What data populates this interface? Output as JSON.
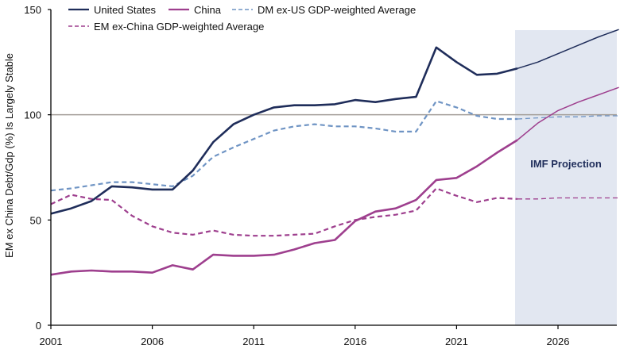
{
  "chart_data": {
    "type": "line",
    "title": "",
    "xlabel": "",
    "ylabel": "EM ex China Debt/Gdp (%) Is Largely Stable",
    "xlim": [
      2001,
      2029
    ],
    "ylim": [
      0,
      150
    ],
    "x_ticks": [
      2001,
      2006,
      2011,
      2016,
      2021,
      2026
    ],
    "y_ticks": [
      0,
      50,
      100,
      150
    ],
    "reference_line": {
      "y": 100,
      "color": "#a39e99"
    },
    "projection_band": {
      "x_start": 2024,
      "x_end": 2029,
      "label": "IMF Projection",
      "color": "#e2e7f1"
    },
    "legend_position": "top",
    "x": [
      2001,
      2002,
      2003,
      2004,
      2005,
      2006,
      2007,
      2008,
      2009,
      2010,
      2011,
      2012,
      2013,
      2014,
      2015,
      2016,
      2017,
      2018,
      2019,
      2020,
      2021,
      2022,
      2023,
      2024,
      2025,
      2026,
      2027,
      2028,
      2029
    ],
    "series": [
      {
        "name": "United States",
        "style": "solid",
        "color": "#1f2d5a",
        "values": [
          53,
          55.5,
          59,
          66,
          65.5,
          64.5,
          64.5,
          73.5,
          87,
          95.5,
          100,
          103.5,
          104.5,
          104.5,
          105,
          107,
          106,
          107.5,
          108.5,
          132,
          125,
          119,
          119.5,
          122,
          125,
          129,
          133,
          137,
          140.5
        ]
      },
      {
        "name": "China",
        "style": "solid",
        "color": "#9e3f8e",
        "values": [
          24,
          25.5,
          26,
          25.5,
          25.5,
          25,
          28.5,
          26.5,
          33.5,
          33,
          33,
          33.5,
          36,
          39,
          40.5,
          49.5,
          54,
          55.5,
          59.5,
          69,
          70,
          75.5,
          82,
          88,
          96,
          102,
          106,
          109.5,
          113
        ]
      },
      {
        "name": "DM ex-US GDP-weighted Average",
        "style": "dashed",
        "color": "#6f94c4",
        "values": [
          64,
          65,
          66.5,
          68,
          68,
          67,
          66,
          71,
          80,
          84.5,
          88.5,
          92.5,
          94.5,
          95.5,
          94.5,
          94.5,
          93.5,
          92,
          92,
          106.5,
          103.5,
          99.5,
          98,
          98,
          98.5,
          99,
          99,
          99.5,
          99.5
        ]
      },
      {
        "name": "EM ex-China GDP-weighted Average",
        "style": "dashed",
        "color": "#9e3f8e",
        "values": [
          57.5,
          62,
          60,
          59.5,
          52,
          47,
          44,
          43,
          45,
          43,
          42.5,
          42.5,
          43,
          43.5,
          47,
          50,
          51.5,
          52.5,
          54.5,
          65,
          61.5,
          58.5,
          60.5,
          60,
          60,
          60.5,
          60.5,
          60.5,
          60.5
        ]
      }
    ]
  },
  "axis": {
    "y_tick_labels": [
      "0",
      "50",
      "100",
      "150"
    ],
    "x_tick_labels": [
      "2001",
      "2006",
      "2011",
      "2016",
      "2021",
      "2026"
    ],
    "y_title": "EM ex China Debt/Gdp (%) Is Largely Stable"
  },
  "legend": {
    "items": [
      {
        "label": "United States"
      },
      {
        "label": "China"
      },
      {
        "label": "DM ex-US GDP-weighted Average"
      },
      {
        "label": "EM ex-China GDP-weighted Average"
      }
    ]
  },
  "annotation": {
    "projection_label": "IMF Projection"
  }
}
